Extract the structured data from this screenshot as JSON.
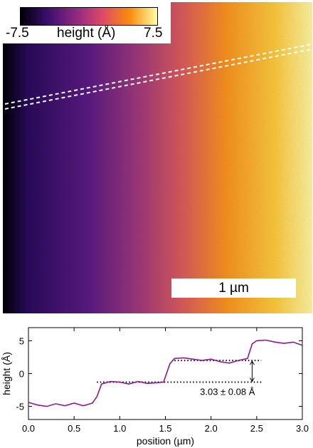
{
  "colorbar": {
    "min_label": "-7.5",
    "max_label": "7.5",
    "title": "height (Å)",
    "stops": [
      "#000004",
      "#3b0f70",
      "#8c2981",
      "#de4968",
      "#f98c0a",
      "#fcffa4"
    ]
  },
  "scalebar": {
    "label": "1 µm"
  },
  "chart_data": {
    "type": "line",
    "xlabel": "position (µm)",
    "ylabel": "height (Å)",
    "xlim": [
      0,
      3.0
    ],
    "ylim": [
      -7,
      7
    ],
    "xticks": [
      "0.0",
      "0.5",
      "1.0",
      "1.5",
      "2.0",
      "2.5",
      "3.0"
    ],
    "yticks": [
      "-5",
      "0",
      "5"
    ],
    "series_color": "#8b1a8b",
    "x": [
      0.0,
      0.1,
      0.2,
      0.3,
      0.4,
      0.5,
      0.6,
      0.7,
      0.75,
      0.8,
      0.85,
      0.9,
      1.0,
      1.1,
      1.2,
      1.3,
      1.4,
      1.48,
      1.55,
      1.6,
      1.7,
      1.8,
      1.9,
      2.0,
      2.1,
      2.2,
      2.3,
      2.4,
      2.45,
      2.5,
      2.6,
      2.7,
      2.8,
      2.9,
      3.0
    ],
    "y": [
      -4.4,
      -4.8,
      -5.0,
      -4.6,
      -4.9,
      -4.5,
      -4.9,
      -4.5,
      -3.5,
      -1.6,
      -1.4,
      -1.2,
      -1.3,
      -1.6,
      -1.2,
      -1.5,
      -1.4,
      -1.3,
      1.5,
      2.3,
      2.4,
      2.2,
      2.0,
      2.2,
      1.8,
      1.6,
      2.0,
      2.3,
      4.5,
      5.0,
      5.1,
      4.8,
      4.6,
      4.8,
      4.3
    ],
    "reference_lines": [
      {
        "y": -1.3,
        "x_start": 0.75,
        "x_end": 2.55
      },
      {
        "y": 2.0,
        "x_start": 1.6,
        "x_end": 2.55
      }
    ],
    "step_arrow_x": 2.45,
    "annotation": "3.03 ± 0.08 Å"
  }
}
